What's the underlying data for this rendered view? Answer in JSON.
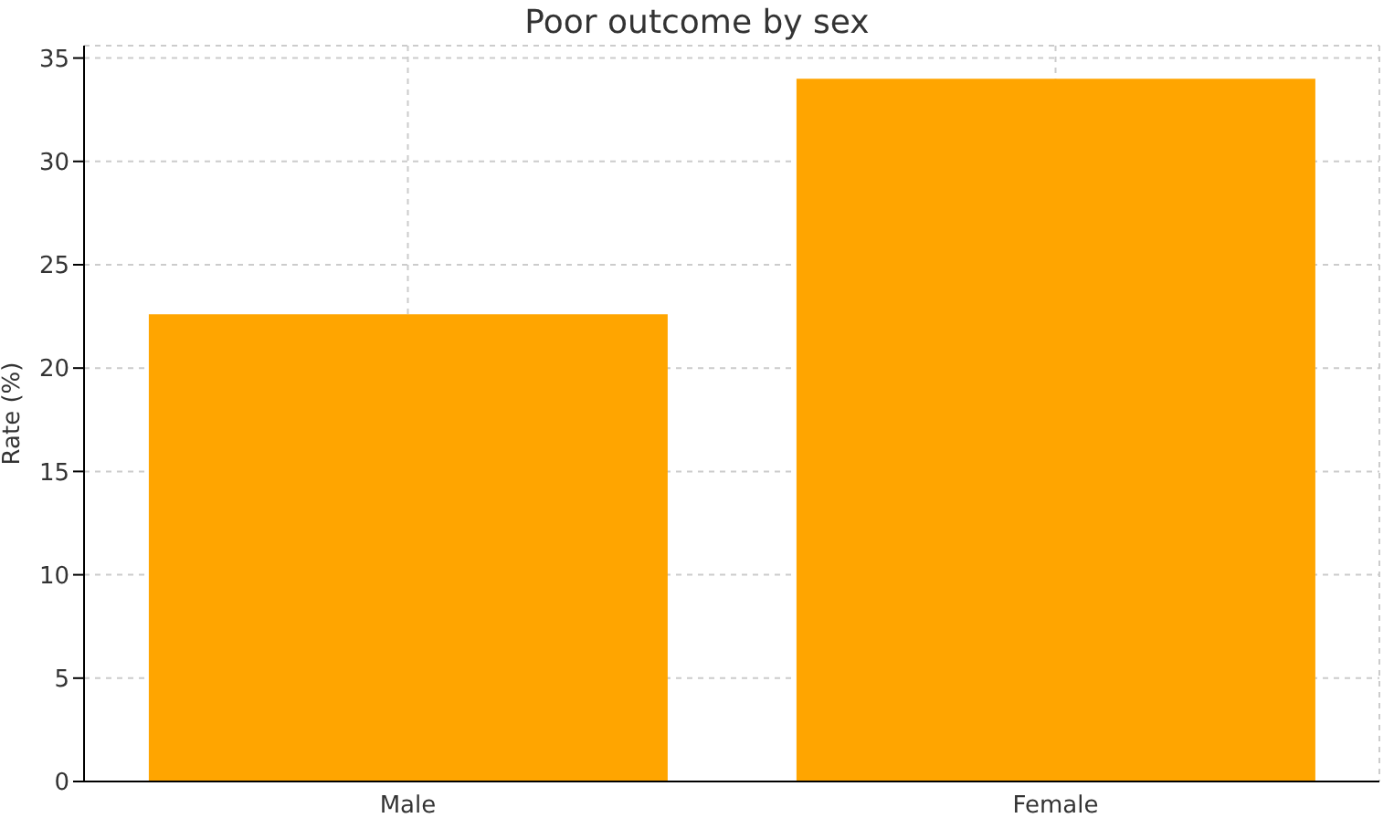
{
  "chart_data": {
    "type": "bar",
    "title": "Poor outcome by sex",
    "ylabel": "Rate (%)",
    "categories": [
      "Male",
      "Female"
    ],
    "series": [
      {
        "color": "#ffa500",
        "values": [
          22.6,
          34.0
        ]
      }
    ],
    "ylim": [
      0,
      35.6
    ],
    "yticks": [
      0,
      5,
      10,
      15,
      20,
      25,
      30,
      35
    ],
    "grid": true
  }
}
